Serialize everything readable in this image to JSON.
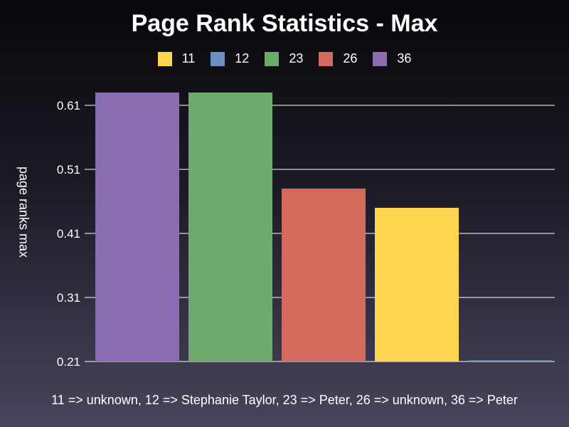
{
  "chart_data": {
    "type": "bar",
    "title": "Page Rank Statistics - Max",
    "ylabel": "page ranks max",
    "xlabel": "",
    "ylim": [
      0.21,
      0.63
    ],
    "yticks": [
      "0.21",
      "0.31",
      "0.41",
      "0.51",
      "0.61"
    ],
    "grid": true,
    "legend_position": "top",
    "legend": [
      {
        "name": "11",
        "color": "#ffd54f"
      },
      {
        "name": "12",
        "color": "#6d8fc3"
      },
      {
        "name": "23",
        "color": "#6daa6c"
      },
      {
        "name": "26",
        "color": "#d46a5e"
      },
      {
        "name": "36",
        "color": "#8a6cb0"
      }
    ],
    "bars": [
      {
        "category": "36",
        "value": 0.63,
        "color": "#8a6cb0"
      },
      {
        "category": "23",
        "value": 0.63,
        "color": "#6daa6c"
      },
      {
        "category": "26",
        "value": 0.48,
        "color": "#d46a5e"
      },
      {
        "category": "11",
        "value": 0.45,
        "color": "#ffd54f"
      },
      {
        "category": "12",
        "value": 0.212,
        "color": "#6d8fc3"
      }
    ],
    "footnote": "11 => unknown, 12 => Stephanie Taylor, 23 => Peter, 26 => unknown, 36 => Peter"
  }
}
